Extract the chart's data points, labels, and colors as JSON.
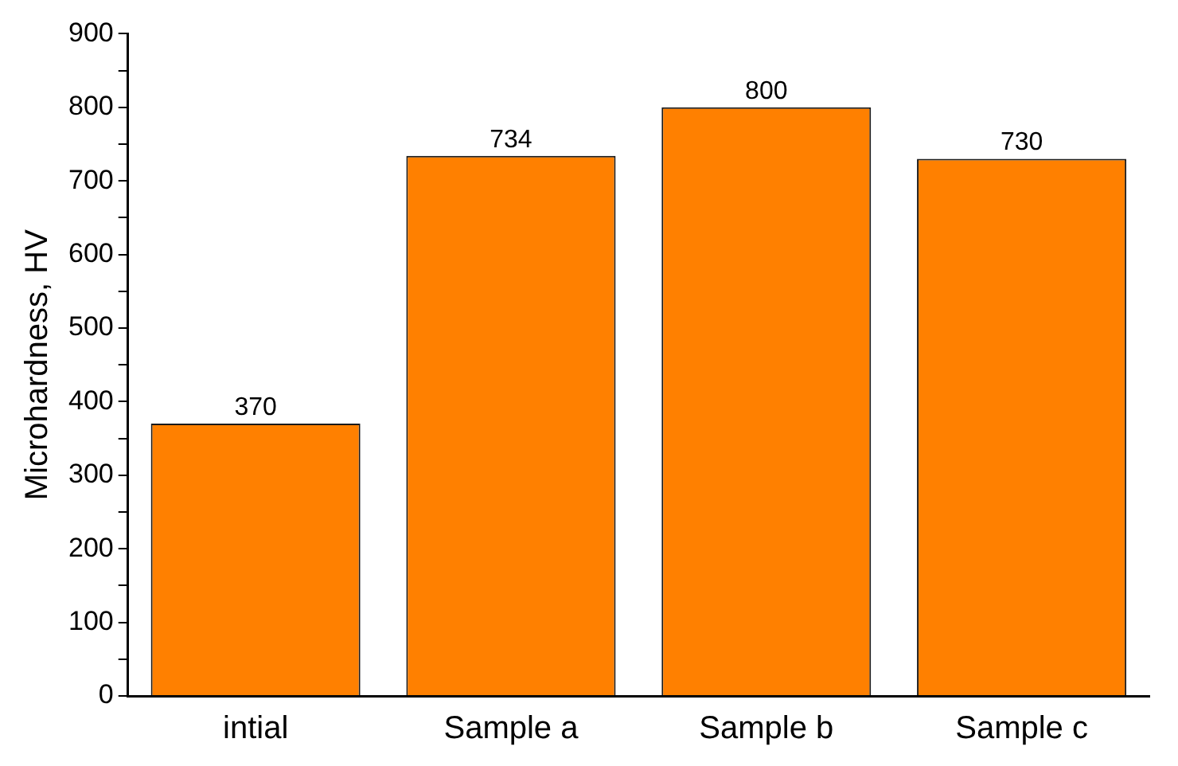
{
  "chart_data": {
    "type": "bar",
    "ylabel": "Microhardness, HV",
    "categories": [
      "intial",
      "Sample a",
      "Sample b",
      "Sample c"
    ],
    "values": [
      370,
      734,
      800,
      730
    ],
    "color": "#ff8000",
    "ylim": [
      0,
      900
    ],
    "yticks": [
      0,
      {
        "value": 50,
        "label": null
      },
      100,
      {
        "value": 150,
        "label": null
      },
      200,
      {
        "value": 250,
        "label": null
      },
      300,
      {
        "value": 350,
        "label": null
      },
      400,
      {
        "value": 450,
        "label": null
      },
      500,
      {
        "value": 550,
        "label": null
      },
      600,
      {
        "value": 650,
        "label": null
      },
      700,
      {
        "value": 750,
        "label": null
      },
      800,
      {
        "value": 850,
        "label": null
      },
      900
    ],
    "data_labels": true,
    "grid": false,
    "legend": false
  }
}
